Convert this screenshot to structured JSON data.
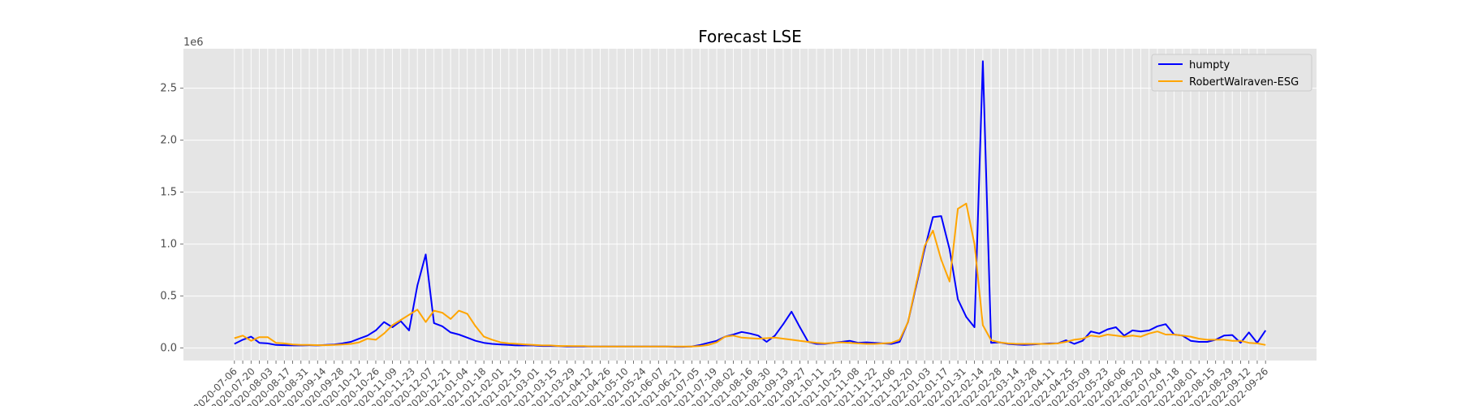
{
  "chart_data": {
    "type": "line",
    "title": "Forecast LSE",
    "xlabel": "",
    "ylabel": "",
    "y_exponent_label": "1e6",
    "ylim": [
      -120000,
      2880000
    ],
    "yticks": [
      0,
      500000,
      1000000,
      1500000,
      2000000,
      2500000
    ],
    "ytick_labels": [
      "0.0",
      "0.5",
      "1.0",
      "1.5",
      "2.0",
      "2.5"
    ],
    "grid": true,
    "legend_position": "top-right",
    "x_labels": [
      "2020-07-06",
      "2020-07-20",
      "2020-08-03",
      "2020-08-17",
      "2020-08-31",
      "2020-09-14",
      "2020-09-28",
      "2020-10-12",
      "2020-10-26",
      "2020-11-09",
      "2020-11-23",
      "2020-12-07",
      "2020-12-21",
      "2021-01-04",
      "2021-01-18",
      "2021-02-01",
      "2021-02-15",
      "2021-03-01",
      "2021-03-15",
      "2021-03-29",
      "2021-04-12",
      "2021-04-26",
      "2021-05-10",
      "2021-05-24",
      "2021-06-07",
      "2021-06-21",
      "2021-07-05",
      "2021-07-19",
      "2021-08-02",
      "2021-08-16",
      "2021-08-30",
      "2021-09-13",
      "2021-09-27",
      "2021-10-11",
      "2021-10-25",
      "2021-11-08",
      "2021-11-22",
      "2021-12-06",
      "2021-12-20",
      "2022-01-03",
      "2022-01-17",
      "2022-01-31",
      "2022-02-14",
      "2022-02-28",
      "2022-03-14",
      "2022-03-28",
      "2022-04-11",
      "2022-04-25",
      "2022-05-09",
      "2022-05-23",
      "2022-06-06",
      "2022-06-20",
      "2022-07-04",
      "2022-07-18",
      "2022-08-01",
      "2022-08-15",
      "2022-08-29",
      "2022-09-12",
      "2022-09-26"
    ],
    "series": [
      {
        "name": "humpty",
        "color": "#0000ff",
        "values": [
          40000,
          80000,
          110000,
          50000,
          45000,
          30000,
          28000,
          25000,
          25000,
          28000,
          25000,
          30000,
          35000,
          45000,
          60000,
          90000,
          120000,
          170000,
          250000,
          200000,
          260000,
          170000,
          600000,
          900000,
          240000,
          210000,
          150000,
          130000,
          100000,
          70000,
          50000,
          40000,
          35000,
          30000,
          25000,
          25000,
          25000,
          20000,
          20000,
          18000,
          15000,
          15000,
          15000,
          15000,
          15000,
          15000,
          15000,
          15000,
          15000,
          15000,
          15000,
          15000,
          15000,
          12000,
          12000,
          15000,
          30000,
          50000,
          70000,
          110000,
          130000,
          155000,
          140000,
          120000,
          60000,
          120000,
          230000,
          350000,
          200000,
          60000,
          40000,
          40000,
          50000,
          60000,
          70000,
          50000,
          55000,
          50000,
          45000,
          40000,
          60000,
          250000,
          600000,
          950000,
          1260000,
          1270000,
          950000,
          470000,
          300000,
          200000,
          2760000,
          50000,
          55000,
          40000,
          35000,
          30000,
          35000,
          40000,
          45000,
          45000,
          75000,
          40000,
          70000,
          160000,
          140000,
          180000,
          200000,
          120000,
          170000,
          160000,
          170000,
          210000,
          230000,
          130000,
          120000,
          70000,
          60000,
          60000,
          80000,
          120000,
          125000,
          50000,
          150000,
          50000,
          170000
        ],
        "display": "#0000ff"
      },
      {
        "name": "RobertWalraven-ESG",
        "color": "#ffa500",
        "values": [
          95000,
          120000,
          70000,
          105000,
          105000,
          50000,
          45000,
          35000,
          30000,
          30000,
          28000,
          28000,
          30000,
          35000,
          40000,
          55000,
          90000,
          80000,
          140000,
          220000,
          270000,
          320000,
          370000,
          250000,
          360000,
          340000,
          280000,
          360000,
          330000,
          210000,
          110000,
          80000,
          55000,
          45000,
          40000,
          35000,
          30000,
          25000,
          25000,
          20000,
          20000,
          18000,
          18000,
          15000,
          15000,
          15000,
          15000,
          15000,
          15000,
          15000,
          15000,
          15000,
          15000,
          15000,
          15000,
          15000,
          20000,
          30000,
          55000,
          110000,
          120000,
          100000,
          95000,
          90000,
          95000,
          100000,
          90000,
          80000,
          70000,
          60000,
          50000,
          45000,
          50000,
          55000,
          50000,
          45000,
          40000,
          40000,
          45000,
          50000,
          80000,
          250000,
          620000,
          980000,
          1130000,
          850000,
          640000,
          1340000,
          1390000,
          1000000,
          220000,
          75000,
          55000,
          45000,
          40000,
          40000,
          40000,
          40000,
          40000,
          45000,
          60000,
          80000,
          90000,
          120000,
          110000,
          130000,
          120000,
          110000,
          120000,
          110000,
          140000,
          160000,
          130000,
          130000,
          120000,
          110000,
          90000,
          80000,
          80000,
          80000,
          70000,
          70000,
          50000,
          45000,
          30000
        ],
        "display": "#ffa500"
      }
    ]
  }
}
